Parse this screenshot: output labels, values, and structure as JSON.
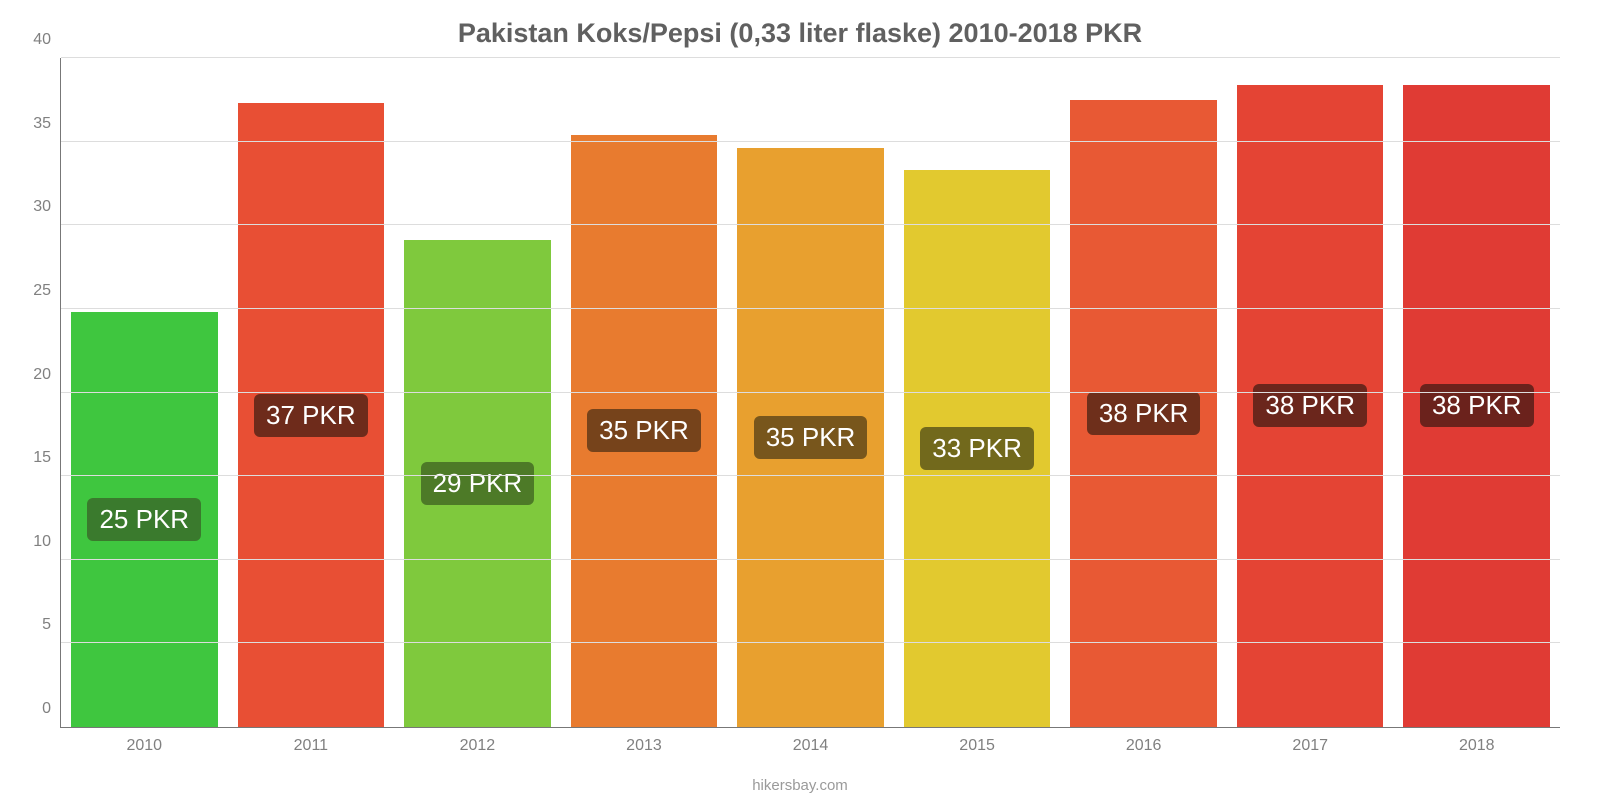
{
  "chart": {
    "type": "bar",
    "title": "Pakistan Koks/Pepsi (0,33 liter flaske) 2010-2018 PKR",
    "title_fontsize": 27,
    "title_color": "#606060",
    "background_color": "#ffffff",
    "axis_color": "#777777",
    "grid_color": "#dddddd",
    "tick_label_color": "#808080",
    "credit": "hikersbay.com",
    "credit_color": "#9a9a9a",
    "ylim": [
      0,
      40
    ],
    "ytick_step": 5,
    "ytick_labels": [
      "0",
      "5",
      "10",
      "15",
      "20",
      "25",
      "30",
      "35",
      "40"
    ],
    "bar_width": 0.88,
    "bar_label_fontsize": 26,
    "xtick_fontsize": 16,
    "ytick_fontsize": 16,
    "bars": [
      {
        "x": "2010",
        "value": 24.8,
        "label": "25 PKR",
        "color": "#3fc63f",
        "label_bg": "#3a7a2d"
      },
      {
        "x": "2011",
        "value": 37.3,
        "label": "37 PKR",
        "color": "#e84f34",
        "label_bg": "#6e2b1b"
      },
      {
        "x": "2012",
        "value": 29.1,
        "label": "29 PKR",
        "color": "#7fc93d",
        "label_bg": "#4d7a27"
      },
      {
        "x": "2013",
        "value": 35.4,
        "label": "35 PKR",
        "color": "#e87b2f",
        "label_bg": "#76431b"
      },
      {
        "x": "2014",
        "value": 34.6,
        "label": "35 PKR",
        "color": "#e8a02f",
        "label_bg": "#78561c"
      },
      {
        "x": "2015",
        "value": 33.3,
        "label": "33 PKR",
        "color": "#e2c92f",
        "label_bg": "#72691c"
      },
      {
        "x": "2016",
        "value": 37.5,
        "label": "38 PKR",
        "color": "#e85934",
        "label_bg": "#6e2f1b"
      },
      {
        "x": "2017",
        "value": 38.4,
        "label": "38 PKR",
        "color": "#e44434",
        "label_bg": "#6b261c"
      },
      {
        "x": "2018",
        "value": 38.4,
        "label": "38 PKR",
        "color": "#e03b34",
        "label_bg": "#6b221c"
      }
    ]
  }
}
